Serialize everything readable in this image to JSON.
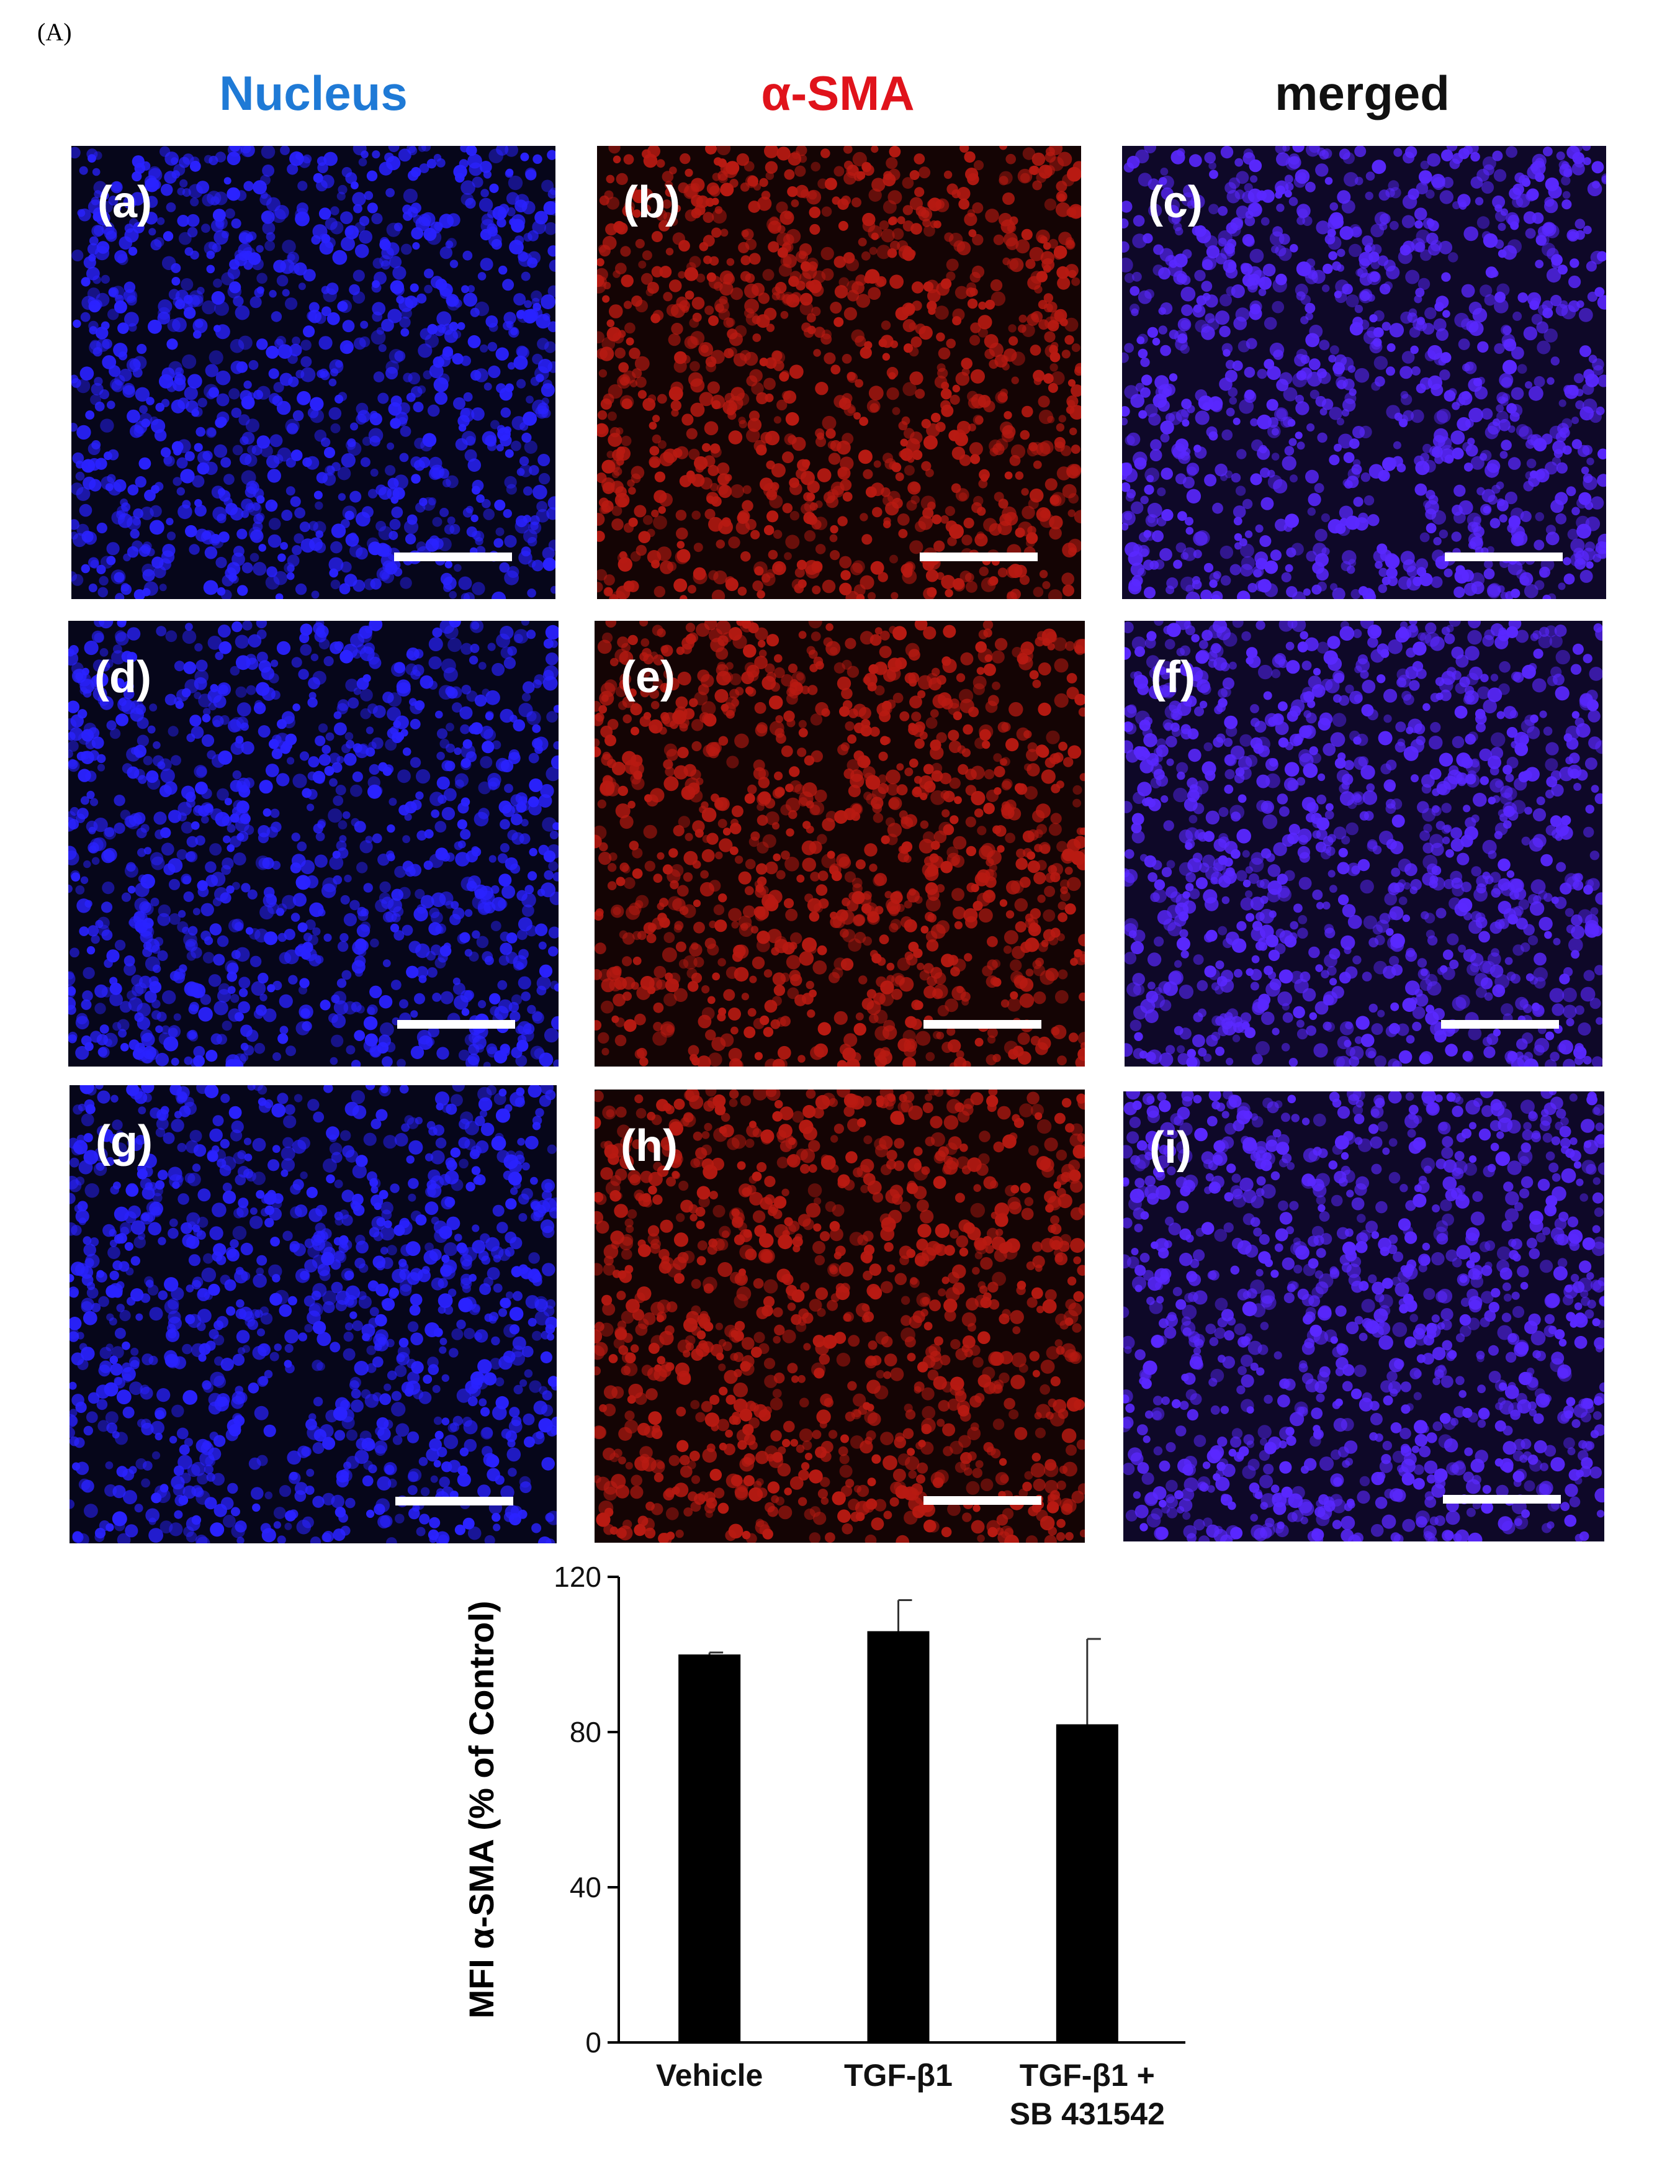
{
  "figure": {
    "label": "(A)",
    "columns": [
      {
        "title": "Nucleus",
        "color": "#1f7ad6"
      },
      {
        "title": "α-SMA",
        "color": "#e0131b"
      },
      {
        "title": "merged",
        "color": "#111111"
      }
    ],
    "panels": [
      {
        "label": "(a)",
        "channel": "nucleus"
      },
      {
        "label": "(b)",
        "channel": "sma"
      },
      {
        "label": "(c)",
        "channel": "merged"
      },
      {
        "label": "(d)",
        "channel": "nucleus"
      },
      {
        "label": "(e)",
        "channel": "sma"
      },
      {
        "label": "(f)",
        "channel": "merged"
      },
      {
        "label": "(g)",
        "channel": "nucleus"
      },
      {
        "label": "(h)",
        "channel": "sma"
      },
      {
        "label": "(i)",
        "channel": "merged"
      }
    ],
    "channel_colors": {
      "nucleus": {
        "bg": "#06061a",
        "dot": "#2a22ff"
      },
      "sma": {
        "bg": "#140404",
        "dot": "#b81a12"
      },
      "merged": {
        "bg": "#0e0828",
        "dot": "#5a28ff"
      }
    }
  },
  "chart_data": {
    "type": "bar",
    "categories": [
      "Vehicle",
      "TGF-β1",
      "TGF-β1 + SB 431542"
    ],
    "category_lines": [
      [
        "Vehicle"
      ],
      [
        "TGF-β1"
      ],
      [
        "TGF-β1 +",
        "SB 431542"
      ]
    ],
    "values": [
      100,
      106,
      82
    ],
    "errors": [
      0.5,
      8,
      22
    ],
    "ylabel": "MFI α-SMA (% of Control)",
    "ylim": [
      0,
      120
    ],
    "yticks": [
      0,
      40,
      80,
      120
    ],
    "bar_color": "#000000"
  }
}
